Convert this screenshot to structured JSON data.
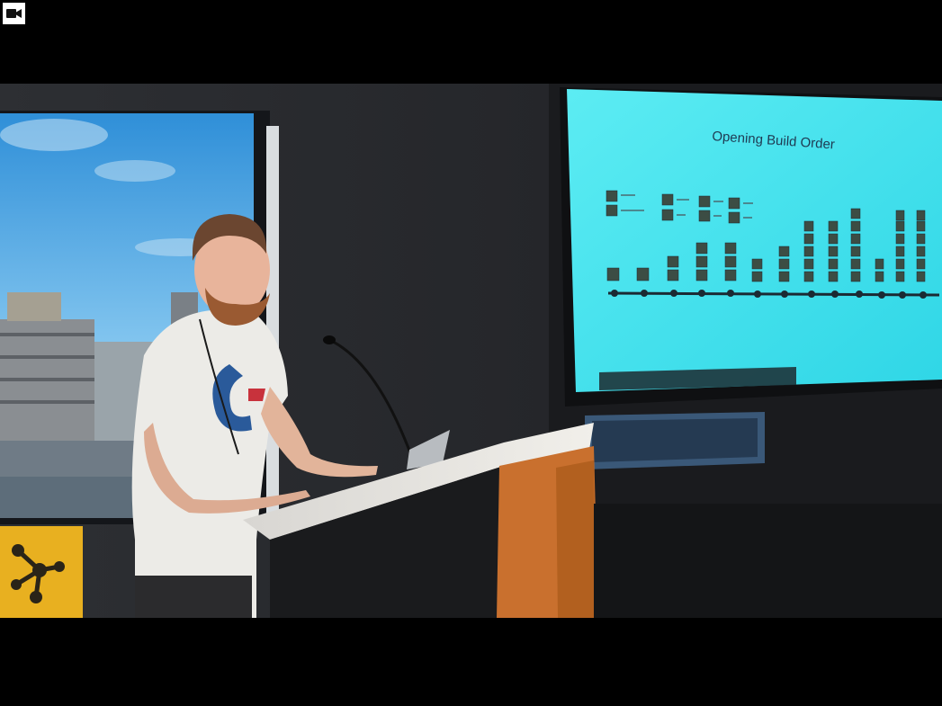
{
  "player": {
    "camera_icon": "video-camera-icon"
  },
  "slide": {
    "title": "Opening Build Order"
  },
  "colors": {
    "letterbox": "#000000",
    "slide_bg": "#3fe0ec",
    "wall": "#26282b",
    "podium": "#e6e2dc",
    "podium_side": "#c9702e"
  }
}
